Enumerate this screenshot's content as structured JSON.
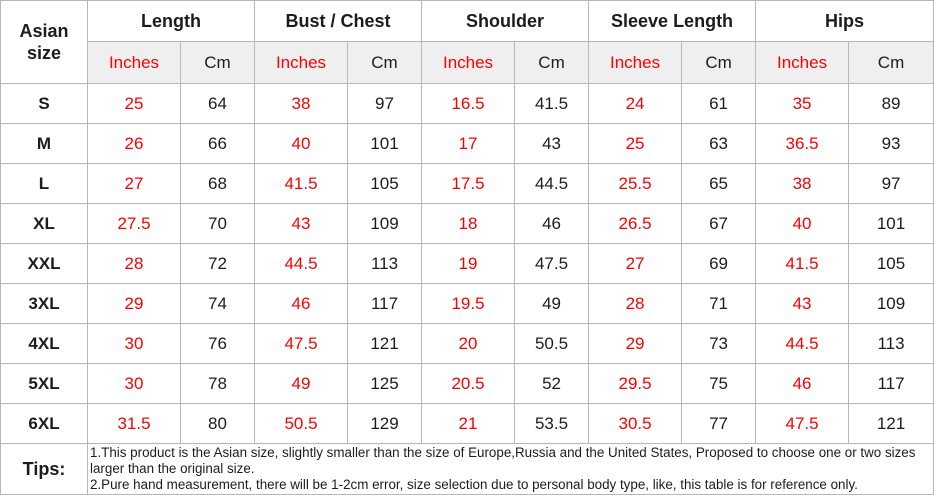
{
  "colors": {
    "inches_text": "#fe0000",
    "cm_text": "#1c1c1c",
    "grid_line": "#b7b7b7",
    "unit_row_background": "#efefef"
  },
  "chart_data": {
    "type": "table",
    "corner_header": "Asian size",
    "column_groups": [
      "Length",
      "Bust / Chest",
      "Shoulder",
      "Sleeve Length",
      "Hips"
    ],
    "unit_subheaders": [
      "Inches",
      "Cm"
    ],
    "columns": [
      "length-inches",
      "length-cm",
      "bust-chest-inches",
      "bust-chest-cm",
      "shoulder-inches",
      "shoulder-cm",
      "sleeve-length-inches",
      "sleeve-length-cm",
      "hips-inches",
      "hips-cm"
    ],
    "rows": [
      {
        "size": "S",
        "values": [
          25,
          64,
          38,
          97,
          16.5,
          41.5,
          24,
          61,
          35,
          89
        ]
      },
      {
        "size": "M",
        "values": [
          26,
          66,
          40,
          101,
          17,
          43,
          25,
          63,
          36.5,
          93
        ]
      },
      {
        "size": "L",
        "values": [
          27,
          68,
          41.5,
          105,
          17.5,
          44.5,
          25.5,
          65,
          38,
          97
        ]
      },
      {
        "size": "XL",
        "values": [
          27.5,
          70,
          43,
          109,
          18,
          46,
          26.5,
          67,
          40,
          101
        ]
      },
      {
        "size": "XXL",
        "values": [
          28,
          72,
          44.5,
          113,
          19,
          47.5,
          27,
          69,
          41.5,
          105
        ]
      },
      {
        "size": "3XL",
        "values": [
          29,
          74,
          46,
          117,
          19.5,
          49,
          28,
          71,
          43,
          109
        ]
      },
      {
        "size": "4XL",
        "values": [
          30,
          76,
          47.5,
          121,
          20,
          50.5,
          29,
          73,
          44.5,
          113
        ]
      },
      {
        "size": "5XL",
        "values": [
          30,
          78,
          49,
          125,
          20.5,
          52,
          29.5,
          75,
          46,
          117
        ]
      },
      {
        "size": "6XL",
        "values": [
          31.5,
          80,
          50.5,
          129,
          21,
          53.5,
          30.5,
          77,
          47.5,
          121
        ]
      }
    ]
  },
  "tips": {
    "label": "Tips:",
    "notes": [
      "1.This product is the Asian size, slightly smaller than the size of Europe,Russia and the United States, Proposed to choose one or two sizes larger than the original size.",
      "2.Pure hand measurement, there will be 1-2cm error, size selection due to personal body type, like, this table is for reference only."
    ]
  }
}
